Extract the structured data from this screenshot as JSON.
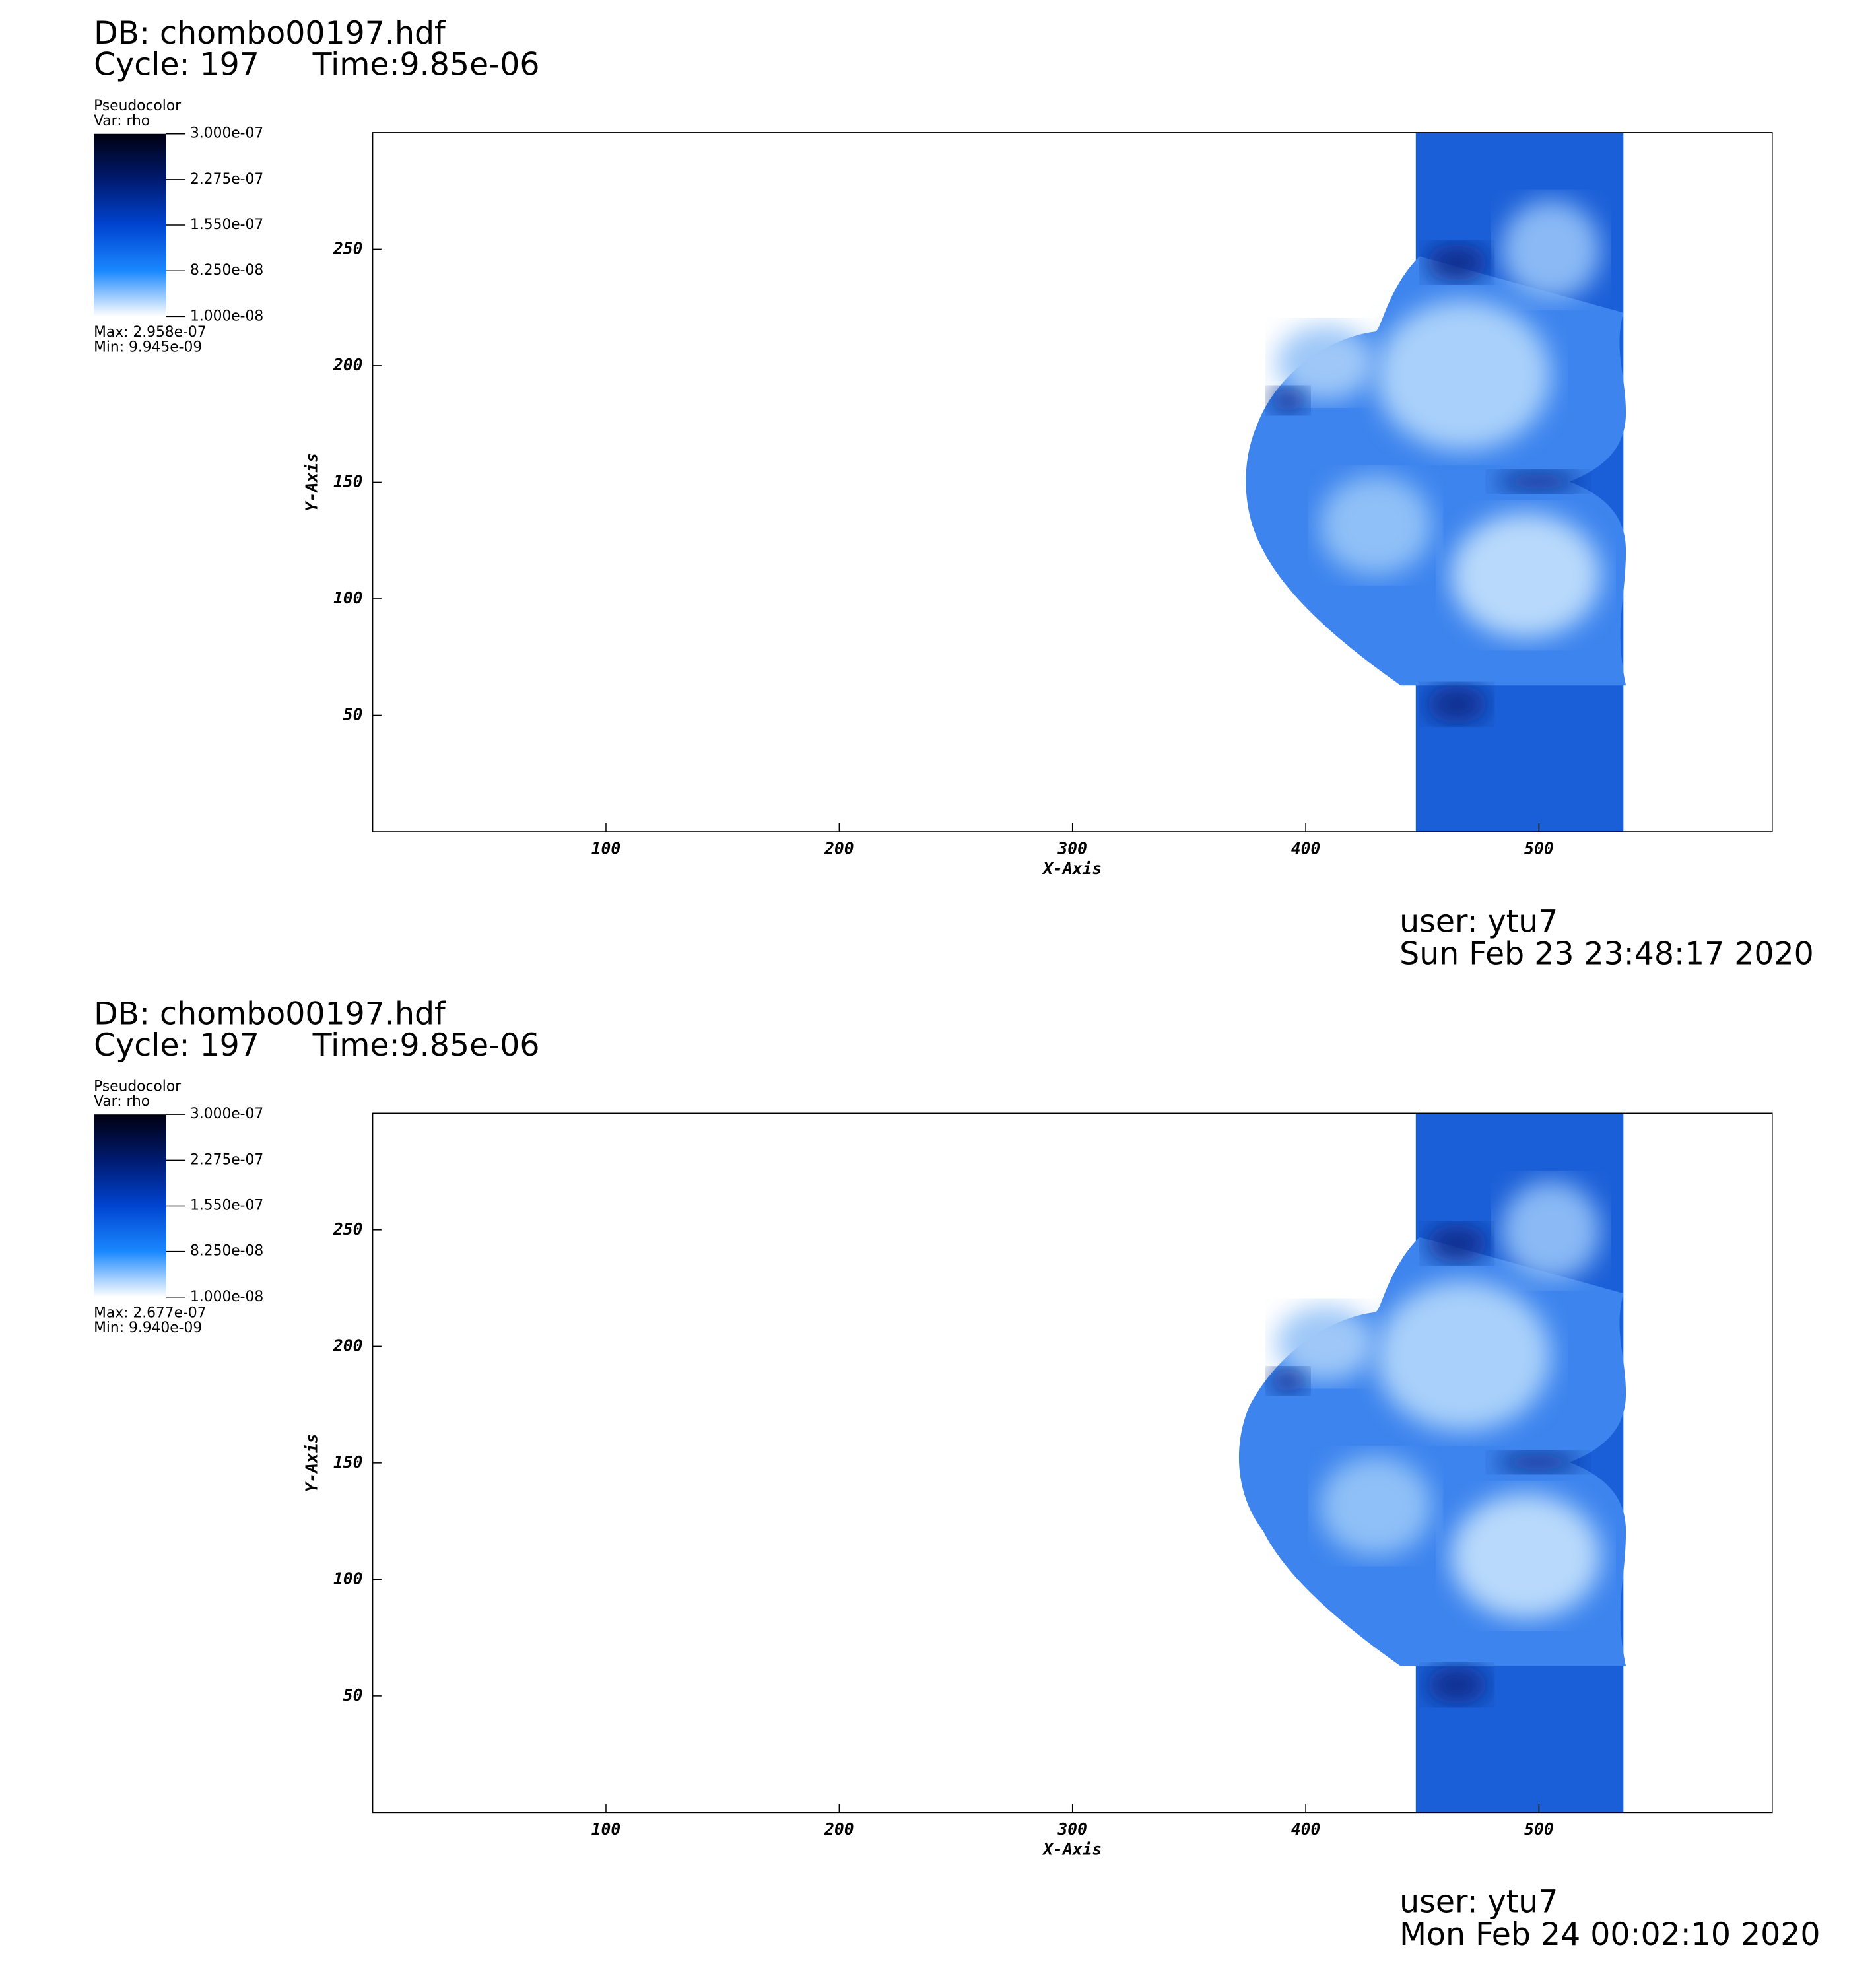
{
  "chart_data": [
    {
      "type": "pseudocolor",
      "db": "DB: chombo00197.hdf",
      "cycle": "Cycle: 197",
      "time": "Time:9.85e-06",
      "plot_name": "Pseudocolor",
      "variable": "Var: rho",
      "colorbar_lim": [
        1e-08,
        3e-07
      ],
      "colorbar_ticks": [
        {
          "value": 3e-07,
          "label": "3.000e-07"
        },
        {
          "value": 2.275e-07,
          "label": "2.275e-07"
        },
        {
          "value": 1.55e-07,
          "label": "1.550e-07"
        },
        {
          "value": 8.25e-08,
          "label": "8.250e-08"
        },
        {
          "value": 1e-08,
          "label": "1.000e-08"
        }
      ],
      "max": "Max:  2.958e-07",
      "min": "Min:  9.945e-09",
      "xlabel": "X-Axis",
      "ylabel": "Y-Axis",
      "xlim": [
        0,
        600
      ],
      "ylim": [
        0,
        300
      ],
      "xticks": [
        100,
        200,
        300,
        400,
        500
      ],
      "yticks": [
        50,
        100,
        150,
        200,
        250
      ],
      "user": "user: ytu7",
      "date": "Sun Feb 23 23:48:17 2020"
    },
    {
      "type": "pseudocolor",
      "db": "DB: chombo00197.hdf",
      "cycle": "Cycle: 197",
      "time": "Time:9.85e-06",
      "plot_name": "Pseudocolor",
      "variable": "Var: rho",
      "colorbar_lim": [
        1e-08,
        3e-07
      ],
      "colorbar_ticks": [
        {
          "value": 3e-07,
          "label": "3.000e-07"
        },
        {
          "value": 2.275e-07,
          "label": "2.275e-07"
        },
        {
          "value": 1.55e-07,
          "label": "1.550e-07"
        },
        {
          "value": 8.25e-08,
          "label": "8.250e-08"
        },
        {
          "value": 1e-08,
          "label": "1.000e-08"
        }
      ],
      "max": "Max:  2.677e-07",
      "min": "Min:  9.940e-09",
      "xlabel": "X-Axis",
      "ylabel": "Y-Axis",
      "xlim": [
        0,
        600
      ],
      "ylim": [
        0,
        300
      ],
      "xticks": [
        100,
        200,
        300,
        400,
        500
      ],
      "yticks": [
        50,
        100,
        150,
        200,
        250
      ],
      "user": "user: ytu7",
      "date": "Mon Feb 24 00:02:10 2020"
    }
  ]
}
